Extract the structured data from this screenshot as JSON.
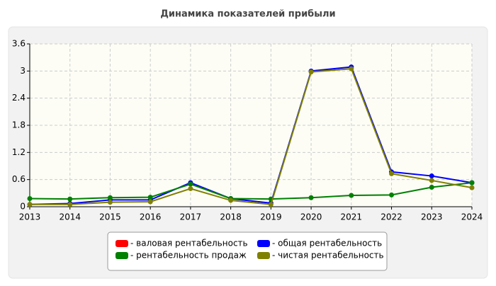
{
  "chart_data": {
    "type": "line",
    "title": "Динамика показателей прибыли",
    "x": [
      2013,
      2014,
      2015,
      2016,
      2017,
      2018,
      2019,
      2020,
      2021,
      2022,
      2023,
      2024
    ],
    "xlim": [
      2013,
      2024
    ],
    "xticks": [
      2013,
      2014,
      2015,
      2016,
      2017,
      2018,
      2019,
      2020,
      2021,
      2022,
      2023,
      2024
    ],
    "ylim": [
      0,
      3.6
    ],
    "yticks": [
      0,
      0.6,
      1.2,
      1.8,
      2.4,
      3,
      3.6
    ],
    "grid": true,
    "series": [
      {
        "name": "- валовая рентабельность",
        "color": "#ff0000",
        "values": [
          null,
          null,
          null,
          null,
          null,
          null,
          null,
          null,
          null,
          null,
          null,
          null
        ]
      },
      {
        "name": "- общая рентабельность",
        "color": "#0000ff",
        "values": [
          0.05,
          0.07,
          0.15,
          0.15,
          0.53,
          0.18,
          0.08,
          3.0,
          3.09,
          0.77,
          0.68,
          0.53
        ]
      },
      {
        "name": "- рентабельность продаж",
        "color": "#008000",
        "values": [
          0.18,
          0.17,
          0.2,
          0.21,
          0.5,
          0.18,
          0.17,
          0.2,
          0.25,
          0.26,
          0.43,
          0.53
        ]
      },
      {
        "name": "- чистая рентабельность",
        "color": "#808000",
        "values": [
          0.05,
          0.05,
          0.1,
          0.11,
          0.4,
          0.14,
          0.05,
          2.98,
          3.05,
          0.73,
          0.58,
          0.42
        ]
      }
    ]
  }
}
